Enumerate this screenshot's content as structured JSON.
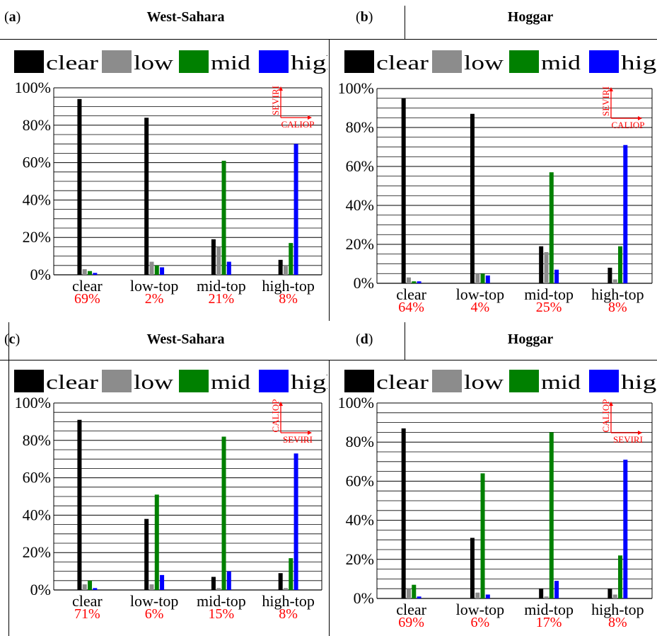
{
  "colors": {
    "clear": "#000000",
    "low": "#8c8c8c",
    "mid": "#008000",
    "high": "#0000ff",
    "note": "#ff0000"
  },
  "legend": [
    "clear",
    "low",
    "mid",
    "high"
  ],
  "y_ticks": [
    "0%",
    "20%",
    "40%",
    "60%",
    "80%",
    "100%"
  ],
  "categories": [
    "clear",
    "low-top",
    "mid-top",
    "high-top"
  ],
  "panels": [
    {
      "tag_open": "(",
      "tag_letter": "a",
      "tag_close": ")",
      "title": "West-Sahara",
      "arrow_y": "SEVIRI",
      "arrow_x": "CALIOP",
      "percents": [
        "69%",
        "2%",
        "21%",
        "8%"
      ]
    },
    {
      "tag_open": "(",
      "tag_letter": "b",
      "tag_close": ")",
      "title": "Hoggar",
      "arrow_y": "SEVIRI",
      "arrow_x": "CALIOP",
      "percents": [
        "64%",
        "4%",
        "25%",
        "8%"
      ]
    },
    {
      "tag_open": "(",
      "tag_letter": "c",
      "tag_close": ")",
      "title": "West-Sahara",
      "arrow_y": "CALIOP",
      "arrow_x": "SEVIRI",
      "percents": [
        "71%",
        "6%",
        "15%",
        "8%"
      ]
    },
    {
      "tag_open": "(",
      "tag_letter": "d",
      "tag_close": ")",
      "title": "Hoggar",
      "arrow_y": "CALIOP",
      "arrow_x": "SEVIRI",
      "percents": [
        "69%",
        "6%",
        "17%",
        "8%"
      ]
    }
  ],
  "chart_data": [
    {
      "type": "bar",
      "categories": [
        "clear",
        "low-top",
        "mid-top",
        "high-top"
      ],
      "ylim": [
        0,
        100
      ],
      "series": [
        {
          "name": "clear",
          "values": [
            94,
            84,
            19,
            8
          ]
        },
        {
          "name": "low",
          "values": [
            3,
            7,
            15,
            5
          ]
        },
        {
          "name": "mid",
          "values": [
            2,
            5,
            61,
            17
          ]
        },
        {
          "name": "high",
          "values": [
            1,
            4,
            7,
            70
          ]
        }
      ]
    },
    {
      "type": "bar",
      "categories": [
        "clear",
        "low-top",
        "mid-top",
        "high-top"
      ],
      "ylim": [
        0,
        100
      ],
      "series": [
        {
          "name": "clear",
          "values": [
            95,
            87,
            19,
            8
          ]
        },
        {
          "name": "low",
          "values": [
            3,
            5,
            16,
            2
          ]
        },
        {
          "name": "mid",
          "values": [
            1,
            5,
            57,
            19
          ]
        },
        {
          "name": "high",
          "values": [
            1,
            4,
            7,
            71
          ]
        }
      ]
    },
    {
      "type": "bar",
      "categories": [
        "clear",
        "low-top",
        "mid-top",
        "high-top"
      ],
      "ylim": [
        0,
        100
      ],
      "series": [
        {
          "name": "clear",
          "values": [
            91,
            38,
            7,
            9
          ]
        },
        {
          "name": "low",
          "values": [
            3,
            3,
            1,
            1
          ]
        },
        {
          "name": "mid",
          "values": [
            5,
            51,
            82,
            17
          ]
        },
        {
          "name": "high",
          "values": [
            1,
            8,
            10,
            73
          ]
        }
      ]
    },
    {
      "type": "bar",
      "categories": [
        "clear",
        "low-top",
        "mid-top",
        "high-top"
      ],
      "ylim": [
        0,
        100
      ],
      "series": [
        {
          "name": "clear",
          "values": [
            87,
            31,
            5,
            5
          ]
        },
        {
          "name": "low",
          "values": [
            5,
            3,
            1,
            2
          ]
        },
        {
          "name": "mid",
          "values": [
            7,
            64,
            85,
            22
          ]
        },
        {
          "name": "high",
          "values": [
            1,
            2,
            9,
            71
          ]
        }
      ]
    }
  ]
}
